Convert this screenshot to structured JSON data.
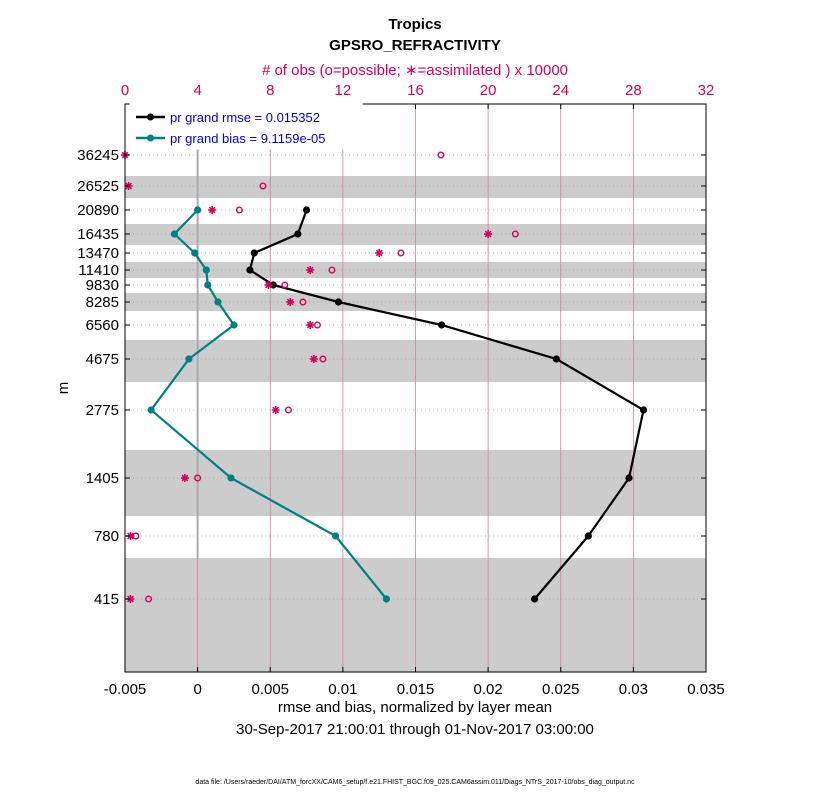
{
  "chart_data": {
    "type": "line",
    "title": "Tropics",
    "subtitle": "GPSRO_REFRACTIVITY",
    "top_axis_label": "# of obs (o=possible; ∗=assimilated ) x 10000",
    "xlabel": "rmse and bias, normalized by layer mean",
    "date_range": "30-Sep-2017 21:00:01 through 01-Nov-2017 03:00:00",
    "ylabel": "m",
    "footer": "data file: /Users/raeder/DAI/ATM_forcXX/CAM6_setup/f.e21.FHIST_BGC.f09_025.CAM6assim.011/Diags_NTrS_2017-10/obs_diag_output.nc",
    "xlim": [
      -0.005,
      0.035
    ],
    "x_ticks": [
      -0.005,
      0,
      0.005,
      0.01,
      0.015,
      0.02,
      0.025,
      0.03,
      0.035
    ],
    "x_tick_labels": [
      "-0.005",
      "0",
      "0.005",
      "0.01",
      "0.015",
      "0.02",
      "0.025",
      "0.03",
      "0.035"
    ],
    "top_xlim": [
      0,
      32
    ],
    "top_ticks": [
      0,
      4,
      8,
      12,
      16,
      20,
      24,
      28,
      32
    ],
    "top_tick_labels": [
      "0",
      "4",
      "8",
      "12",
      "16",
      "20",
      "24",
      "28",
      "32"
    ],
    "levels": [
      415,
      780,
      1405,
      2775,
      4675,
      6560,
      8285,
      9830,
      11410,
      13470,
      16435,
      20890,
      26525,
      36245
    ],
    "level_labels": [
      "415",
      "780",
      "1405",
      "2775",
      "4675",
      "6560",
      "8285",
      "9830",
      "11410",
      "13470",
      "16435",
      "20890",
      "26525",
      "36245"
    ],
    "series": [
      {
        "name": "pr grand rmse = 0.015352",
        "color": "#000000",
        "levels": [
          415,
          780,
          1405,
          2775,
          4675,
          6560,
          8285,
          9830,
          11410,
          13470,
          16435,
          20890
        ],
        "values": [
          0.0232,
          0.0269,
          0.0297,
          0.0307,
          0.0247,
          0.0168,
          0.0097,
          0.0052,
          0.0036,
          0.0039,
          0.0069,
          0.0075
        ]
      },
      {
        "name": "pr grand bias = 9.1159e-05",
        "color": "#008080",
        "levels": [
          415,
          780,
          1405,
          2775,
          4675,
          6560,
          8285,
          9830,
          11410,
          13470,
          16435,
          20890
        ],
        "values": [
          0.013,
          0.0095,
          0.0023,
          -0.0032,
          -0.0006,
          0.0025,
          0.0014,
          0.0007,
          0.0006,
          -0.0002,
          -0.0016,
          0.0
        ]
      }
    ],
    "obs_possible": {
      "levels": [
        415,
        780,
        1405,
        2775,
        4675,
        6560,
        8285,
        9830,
        11410,
        13470,
        16435,
        20890,
        26525,
        36245
      ],
      "values": [
        1.3,
        0.6,
        4.0,
        9.0,
        10.9,
        10.6,
        9.8,
        8.8,
        11.4,
        15.2,
        21.5,
        6.3,
        7.6,
        17.4
      ]
    },
    "obs_assimilated": {
      "levels": [
        415,
        780,
        1405,
        2775,
        4675,
        6560,
        8285,
        9830,
        11410,
        13470,
        16435,
        20890,
        26525,
        36245
      ],
      "values": [
        0.3,
        0.3,
        3.3,
        8.3,
        10.4,
        10.2,
        9.1,
        7.9,
        10.2,
        14.0,
        20.0,
        4.8,
        0.2,
        0.0
      ]
    },
    "reference_line_x": 0,
    "colors": {
      "rmse": "#000000",
      "bias": "#008080",
      "obs": "#d6005a",
      "band": "#cccccc",
      "zero_line": "#aaaaaa",
      "grid": "#c8809f"
    }
  }
}
